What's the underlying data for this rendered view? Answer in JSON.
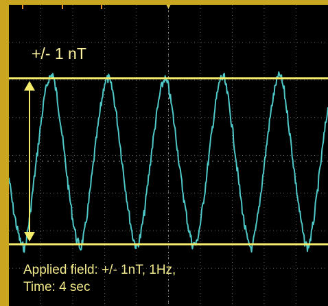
{
  "chart_data": {
    "type": "line",
    "title": "",
    "xlabel": "",
    "ylabel": "",
    "xlim": [
      0,
      4
    ],
    "ylim": [
      -2,
      2
    ],
    "grid": true,
    "series": [
      {
        "x": [
          0.0,
          0.05,
          0.1,
          0.15,
          0.2,
          0.25,
          0.3,
          0.35,
          0.4,
          0.45,
          0.5,
          0.55,
          0.6,
          0.65,
          0.7,
          0.75,
          0.8,
          0.85,
          0.9,
          0.95,
          1.0,
          1.05,
          1.1,
          1.15,
          1.2,
          1.25,
          1.3,
          1.35,
          1.4,
          1.45,
          1.5,
          1.55,
          1.6,
          1.65,
          1.7,
          1.75,
          1.8,
          1.85,
          1.9,
          1.95,
          2.0,
          2.05,
          2.1,
          2.15,
          2.2,
          2.25,
          2.3,
          2.35,
          2.4,
          2.45,
          2.5,
          2.55,
          2.6,
          2.65,
          2.7,
          2.75,
          2.8,
          2.85,
          2.9,
          2.95,
          3.0,
          3.05,
          3.1,
          3.15,
          3.2,
          3.25,
          3.3,
          3.35,
          3.4,
          3.45,
          3.5,
          3.55,
          3.6,
          3.65,
          3.7,
          3.75,
          3.8,
          3.85,
          3.9,
          3.95,
          4.0
        ],
        "y": [
          -0.2,
          -0.55,
          -0.8,
          -1.0,
          -1.05,
          -0.75,
          -0.35,
          0.05,
          0.45,
          0.8,
          1.0,
          1.05,
          0.8,
          0.45,
          0.05,
          -0.35,
          -0.7,
          -0.95,
          -1.05,
          -0.85,
          -0.5,
          -0.1,
          0.3,
          0.65,
          0.95,
          1.0,
          0.85,
          0.55,
          0.15,
          -0.25,
          -0.6,
          -0.9,
          -1.05,
          -0.9,
          -0.6,
          -0.2,
          0.2,
          0.55,
          0.85,
          1.0,
          0.9,
          0.6,
          0.25,
          -0.15,
          -0.5,
          -0.8,
          -1.0,
          -1.0,
          -0.75,
          -0.4,
          0.0,
          0.4,
          0.75,
          1.0,
          1.0,
          0.75,
          0.4,
          0.0,
          -0.4,
          -0.75,
          -1.0,
          -1.05,
          -0.8,
          -0.45,
          -0.05,
          0.35,
          0.7,
          0.95,
          1.05,
          0.85,
          0.5,
          0.1,
          -0.3,
          -0.65,
          -0.95,
          -1.05,
          -0.85,
          -0.5,
          -0.1,
          0.3,
          0.65
        ]
      }
    ],
    "annotations": [
      {
        "text": "+/- 1 nT"
      },
      {
        "text": "Applied field: +/- 1nT, 1Hz,"
      },
      {
        "text": "Time: 4 sec"
      }
    ],
    "reference_lines": [
      1,
      -1
    ]
  },
  "colors": {
    "frame": "#c9a520",
    "screen": "#000000",
    "trace": "#4fc8c8",
    "markers": "#f4ec6a",
    "grid": "#6a6a6a",
    "top_marks": "#e8902a"
  }
}
